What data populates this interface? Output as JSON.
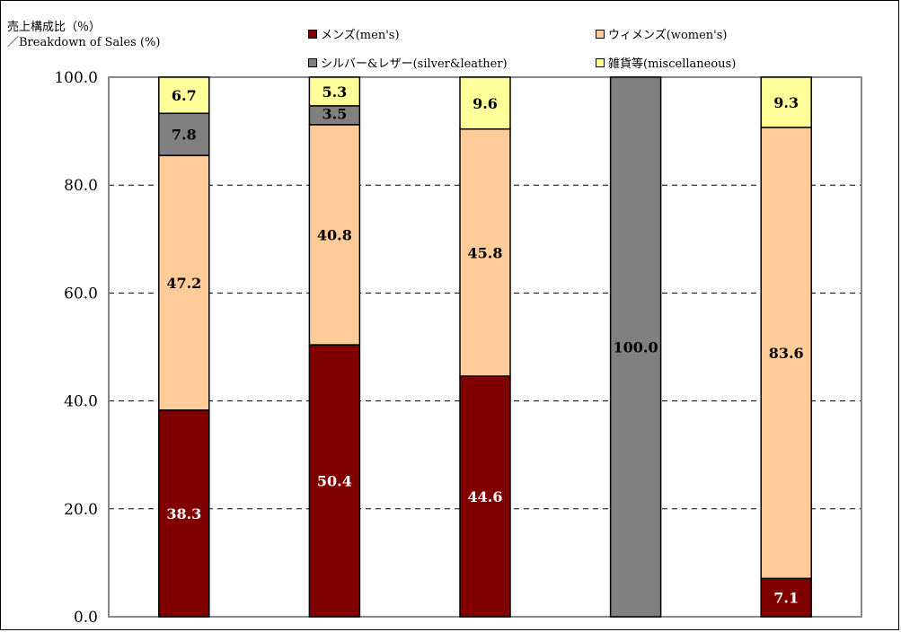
{
  "chart_data": {
    "type": "bar",
    "stacked": true,
    "title": "",
    "ylabel_lines": [
      "売上構成比（％）",
      "／Breakdown of Sales (%)"
    ],
    "xlabel": "",
    "ylim": [
      0,
      100
    ],
    "yticks": [
      0,
      20,
      40,
      60,
      80,
      100
    ],
    "ytick_labels": [
      "0.0",
      "20.0",
      "40.0",
      "60.0",
      "80.0",
      "100.0"
    ],
    "grid": "horizontal-dashed",
    "legend_position": "top",
    "categories": [
      "",
      "",
      "",
      "",
      ""
    ],
    "series": [
      {
        "name": "メンズ(men's)",
        "color": "#800000",
        "label_color": "#ffffff",
        "values": [
          38.3,
          50.4,
          44.6,
          0,
          7.1
        ]
      },
      {
        "name": "ウィメンズ(women's)",
        "color": "#ffcc99",
        "label_color": "#000000",
        "values": [
          47.2,
          40.8,
          45.8,
          0,
          83.6
        ]
      },
      {
        "name": "シルバー&レザー(silver&leather)",
        "color": "#808080",
        "label_color": "#000000",
        "values": [
          7.8,
          3.5,
          0,
          100.0,
          0
        ]
      },
      {
        "name": "雑貨等(miscellaneous)",
        "color": "#ffff99",
        "label_color": "#000000",
        "values": [
          6.7,
          5.3,
          9.6,
          0,
          9.3
        ]
      }
    ],
    "data_labels": [
      [
        "38.3",
        "47.2",
        "7.8",
        "6.7"
      ],
      [
        "50.4",
        "40.8",
        "3.5",
        "5.3"
      ],
      [
        "44.6",
        "45.8",
        "",
        "9.6"
      ],
      [
        "",
        "",
        "100.0",
        ""
      ],
      [
        "7.1",
        "83.6",
        "",
        "9.3"
      ]
    ]
  }
}
